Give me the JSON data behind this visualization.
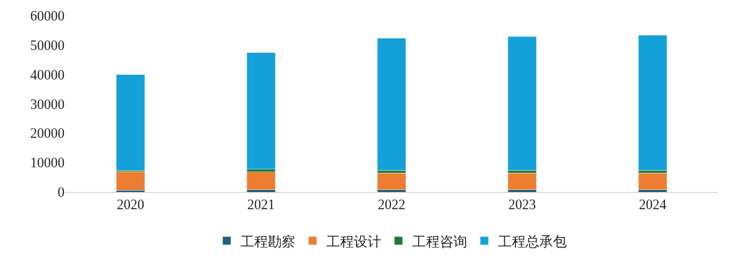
{
  "chart_data": {
    "type": "bar",
    "stacked": true,
    "categories": [
      "2020",
      "2021",
      "2022",
      "2023",
      "2024"
    ],
    "series": [
      {
        "name": "工程勘察",
        "color": "#1f5f7f",
        "values": [
          600,
          800,
          800,
          800,
          800
        ]
      },
      {
        "name": "工程设计",
        "color": "#ed7d31",
        "values": [
          6300,
          6000,
          5700,
          5700,
          5700
        ]
      },
      {
        "name": "工程咨询",
        "color": "#1e7a34",
        "values": [
          500,
          1000,
          900,
          900,
          900
        ]
      },
      {
        "name": "工程总承包",
        "color": "#14a0d8",
        "values": [
          32600,
          39600,
          44900,
          45500,
          46000
        ]
      }
    ],
    "ylim": [
      0,
      60000
    ],
    "yticks": [
      0,
      10000,
      20000,
      30000,
      40000,
      50000,
      60000
    ],
    "grid": false,
    "legend": "bottom"
  }
}
